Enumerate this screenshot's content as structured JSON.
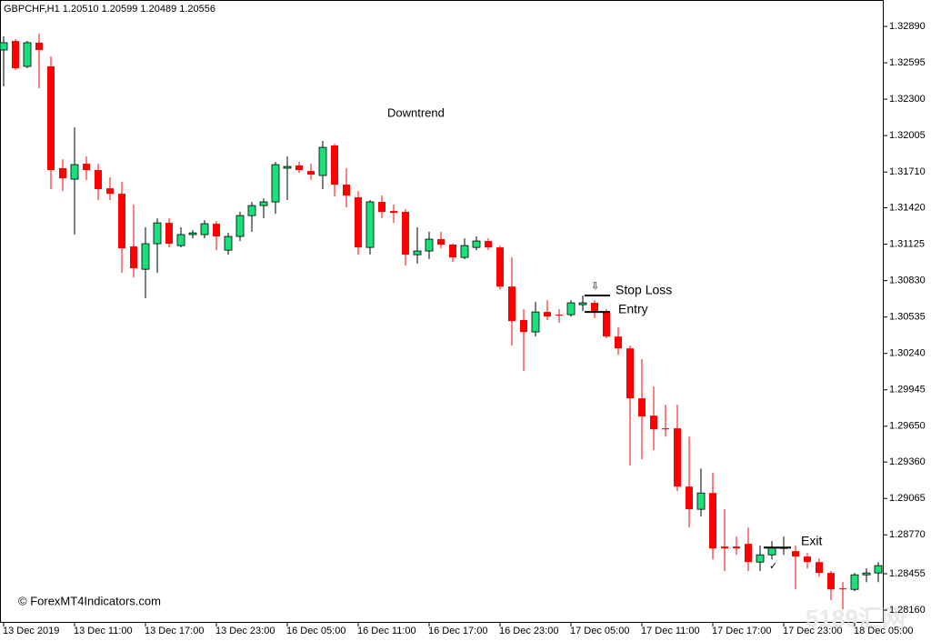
{
  "chart_data": {
    "type": "candlestick",
    "title": "GBPCHF,H1  1.20510 1.20599 1.20489 1.20556",
    "annotations": {
      "trend": "Downtrend",
      "stop_loss": {
        "text": "Stop Loss",
        "value": 1.30709
      },
      "entry": {
        "text": "Entry",
        "value": 1.30576
      },
      "exit": {
        "text": "Exit",
        "value": 1.28667
      }
    },
    "copyright": "© ForexMT4Indicators.com",
    "watermark": "5189汇网",
    "up_color": "#19e07a",
    "down_color": "#ff0000",
    "ylim": [
      1.28057,
      1.33104
    ],
    "yticks": [
      {
        "value": 1.3289,
        "label": "1.32890"
      },
      1.32595,
      {
        "value": 1.323,
        "label": "1.32300"
      },
      1.32005,
      {
        "value": 1.3171,
        "label": "1.31710"
      },
      {
        "value": 1.3142,
        "label": "1.31420"
      },
      1.31125,
      {
        "value": 1.3083,
        "label": "1.30830"
      },
      1.30535,
      {
        "value": 1.3024,
        "label": "1.30240"
      },
      1.29945,
      {
        "value": 1.2965,
        "label": "1.29650"
      },
      {
        "value": 1.2936,
        "label": "1.29360"
      },
      1.29065,
      {
        "value": 1.2877,
        "label": "1.28770"
      },
      1.28455,
      {
        "value": 1.2816,
        "label": "1.28160"
      }
    ],
    "categories": [
      "13 Dec 2019",
      null,
      null,
      null,
      null,
      null,
      "13 Dec 11:00",
      null,
      null,
      null,
      null,
      null,
      "13 Dec 17:00",
      null,
      null,
      null,
      null,
      null,
      "13 Dec 23:00",
      null,
      null,
      null,
      null,
      null,
      "16 Dec 05:00",
      null,
      null,
      null,
      null,
      null,
      "16 Dec 11:00",
      null,
      null,
      null,
      null,
      null,
      "16 Dec 17:00",
      null,
      null,
      null,
      null,
      null,
      "16 Dec 23:00",
      null,
      null,
      null,
      null,
      null,
      "17 Dec 05:00",
      null,
      null,
      null,
      null,
      null,
      "17 Dec 11:00",
      null,
      null,
      null,
      null,
      null,
      "17 Dec 17:00",
      null,
      null,
      null,
      null,
      null,
      "17 Dec 23:00",
      null,
      null,
      null,
      null,
      null,
      "18 Dec 05:00",
      null,
      null
    ],
    "open": [
      1.32699,
      1.32772,
      1.32566,
      1.32758,
      1.32566,
      1.31741,
      1.31652,
      1.31777,
      1.31726,
      1.31578,
      1.31534,
      1.31107,
      1.30922,
      1.31129,
      1.31298,
      1.31114,
      1.31203,
      1.31203,
      1.31291,
      1.31077,
      1.31188,
      1.31357,
      1.31438,
      1.31468,
      1.31741,
      1.31763,
      1.31718,
      1.31682,
      1.31925,
      1.31608,
      1.31505,
      1.31099,
      1.31468,
      1.31394,
      1.31387,
      1.3104,
      1.3107,
      1.31166,
      1.31122,
      1.31018,
      1.31099,
      1.31151,
      1.31099,
      1.30782,
      1.3051,
      1.30414,
      1.30576,
      1.30554,
      1.30554,
      1.30635,
      1.3065,
      1.30576,
      1.30377,
      1.30281,
      1.29876,
      1.29736,
      1.29633,
      1.29633,
      1.29161,
      1.28977,
      1.29109,
      1.28675,
      1.28675,
      1.28697,
      1.28549,
      1.28608,
      1.2866,
      1.28638,
      1.28594,
      1.28549,
      1.28461,
      1.28336,
      1.28328,
      1.28446,
      1.28461
    ],
    "high": [
      1.32809,
      1.32787,
      1.32772,
      1.32831,
      1.32647,
      1.31814,
      1.32072,
      1.31836,
      1.31777,
      1.31667,
      1.3163,
      1.31446,
      1.31262,
      1.31335,
      1.31335,
      1.31262,
      1.31239,
      1.3132,
      1.31313,
      1.31217,
      1.31387,
      1.31468,
      1.31497,
      1.31792,
      1.31836,
      1.31792,
      1.31777,
      1.31962,
      1.3194,
      1.31741,
      1.31556,
      1.31483,
      1.31519,
      1.31446,
      1.31409,
      1.31262,
      1.31225,
      1.31225,
      1.31129,
      1.31173,
      1.31188,
      1.31173,
      1.31114,
      1.31018,
      1.30598,
      1.30657,
      1.30672,
      1.30598,
      1.30672,
      1.30709,
      1.30672,
      1.30598,
      1.30451,
      1.30303,
      1.30193,
      1.29972,
      1.29824,
      1.29824,
      1.29566,
      1.29308,
      1.29272,
      1.28977,
      1.28756,
      1.28829,
      1.28682,
      1.28719,
      1.28756,
      1.28682,
      1.28623,
      1.28579,
      1.28476,
      1.28387,
      1.28461,
      1.28498,
      1.28549
    ],
    "low": [
      1.32404,
      1.32537,
      1.32551,
      1.32389,
      1.31571,
      1.31556,
      1.31203,
      1.31645,
      1.31483,
      1.31483,
      1.30893,
      1.30856,
      1.30687,
      1.30893,
      1.31099,
      1.31099,
      1.31173,
      1.31173,
      1.31077,
      1.3104,
      1.31151,
      1.31225,
      1.31335,
      1.31372,
      1.31483,
      1.31704,
      1.31645,
      1.31571,
      1.31512,
      1.31424,
      1.3104,
      1.3104,
      1.31335,
      1.31298,
      1.30952,
      1.30967,
      1.31004,
      1.31092,
      1.30981,
      1.31004,
      1.31077,
      1.31077,
      1.3076,
      1.30303,
      1.30097,
      1.30377,
      1.3051,
      1.30488,
      1.30539,
      1.30583,
      1.30525,
      1.30362,
      1.3023,
      1.29331,
      1.29382,
      1.29456,
      1.29566,
      1.29124,
      1.28829,
      1.28918,
      1.28571,
      1.28476,
      1.28608,
      1.28476,
      1.28476,
      1.28571,
      1.28608,
      1.28328,
      1.28498,
      1.28431,
      1.2824,
      1.28166,
      1.28313,
      1.28387,
      1.28387
    ],
    "close": [
      1.32758,
      1.32551,
      1.32758,
      1.32699,
      1.31726,
      1.31659,
      1.3177,
      1.31726,
      1.31571,
      1.31534,
      1.31092,
      1.3093,
      1.31129,
      1.31298,
      1.31129,
      1.31203,
      1.31217,
      1.31291,
      1.31188,
      1.31188,
      1.31357,
      1.31438,
      1.31468,
      1.3177,
      1.31755,
      1.31726,
      1.31689,
      1.3191,
      1.31608,
      1.31519,
      1.31099,
      1.31468,
      1.31387,
      1.31379,
      1.3104,
      1.3107,
      1.31166,
      1.31122,
      1.31018,
      1.31114,
      1.31151,
      1.31099,
      1.30782,
      1.30502,
      1.30414,
      1.30576,
      1.30539,
      1.30547,
      1.3065,
      1.3065,
      1.30576,
      1.30377,
      1.30281,
      1.29876,
      1.29729,
      1.29625,
      1.29625,
      1.29161,
      1.28977,
      1.29109,
      1.2866,
      1.2866,
      1.2866,
      1.28549,
      1.28608,
      1.28667,
      1.28667,
      1.28594,
      1.28549,
      1.28461,
      1.28328,
      1.28328,
      1.28446,
      1.28461,
      1.2852
    ]
  }
}
